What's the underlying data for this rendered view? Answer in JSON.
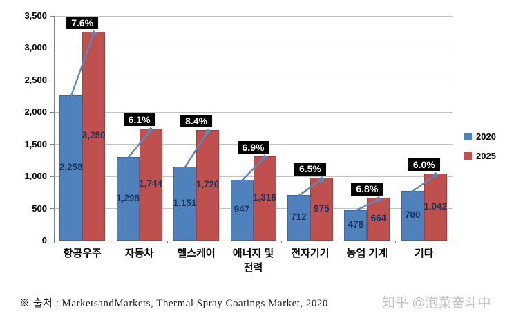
{
  "chart_data": {
    "type": "bar",
    "title": "",
    "categories": [
      "항공우주",
      "자동차",
      "헬스케어",
      "에너지 및\n전력",
      "전자기기",
      "농업 기계",
      "기타"
    ],
    "series": [
      {
        "name": "2020",
        "color": "#4F81BD",
        "values": [
          2258,
          1298,
          1151,
          947,
          712,
          478,
          780
        ]
      },
      {
        "name": "2025",
        "color": "#C0504D",
        "values": [
          3250,
          1744,
          1720,
          1318,
          975,
          664,
          1042
        ]
      }
    ],
    "growth_labels": [
      "7.6%",
      "6.1%",
      "8.4%",
      "6.9%",
      "6.5%",
      "6.8%",
      "6.0%"
    ],
    "xlabel": "",
    "ylabel": "",
    "ylim": [
      0,
      3500
    ],
    "yticks": [
      0,
      500,
      1000,
      1500,
      2000,
      2500,
      3000,
      3500
    ],
    "grid": true,
    "legend_position": "right",
    "value_label_color": "#17375E",
    "growth_box_bg": "#000000",
    "growth_box_text_color": "#FFFFFF",
    "trend_line_color": "#5b87be"
  },
  "legend": {
    "items": [
      {
        "label": "2020",
        "color": "#4F81BD"
      },
      {
        "label": "2025",
        "color": "#C0504D"
      }
    ]
  },
  "footer": {
    "source_text": "※ 출처 : MarketsandMarkets, Thermal Spray Coatings Market, 2020",
    "watermark": "知乎 @泡菜奋斗中"
  }
}
